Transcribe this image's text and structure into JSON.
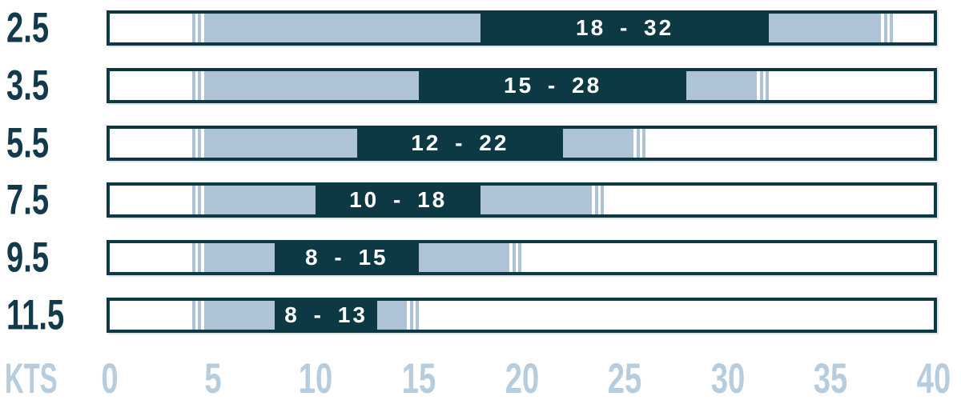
{
  "chart_data": {
    "type": "bar",
    "variant": "horizontal-range-bars",
    "title": "",
    "unit_label": "KTS",
    "xlabel": "KTS",
    "xlim": [
      0,
      40
    ],
    "x_ticks": [
      "0",
      "5",
      "10",
      "15",
      "20",
      "25",
      "30",
      "35",
      "40"
    ],
    "grid": false,
    "rows": [
      {
        "sail_size": "2.5",
        "ideal_label": "18 - 32",
        "ideal_range": [
          18,
          32
        ],
        "extended_range": [
          4,
          38
        ]
      },
      {
        "sail_size": "3.5",
        "ideal_label": "15 - 28",
        "ideal_range": [
          15,
          28
        ],
        "extended_range": [
          4,
          32
        ]
      },
      {
        "sail_size": "5.5",
        "ideal_label": "12 - 22",
        "ideal_range": [
          12,
          22
        ],
        "extended_range": [
          4,
          26
        ]
      },
      {
        "sail_size": "7.5",
        "ideal_label": "10 - 18",
        "ideal_range": [
          10,
          18
        ],
        "extended_range": [
          4,
          24
        ]
      },
      {
        "sail_size": "9.5",
        "ideal_label": "8 - 15",
        "ideal_range": [
          8,
          15
        ],
        "extended_range": [
          4,
          20
        ]
      },
      {
        "sail_size": "11.5",
        "ideal_label": "8 - 13",
        "ideal_range": [
          8,
          13
        ],
        "extended_range": [
          4,
          15
        ]
      }
    ],
    "colors": {
      "ideal": "#0d3944",
      "extended": "#aec4d6",
      "axis_text": "#b7ccdc",
      "row_label": "#123a4b",
      "bar_border": "#0d3944",
      "background": "#ffffff",
      "range_label_text": "#ffffff"
    }
  }
}
